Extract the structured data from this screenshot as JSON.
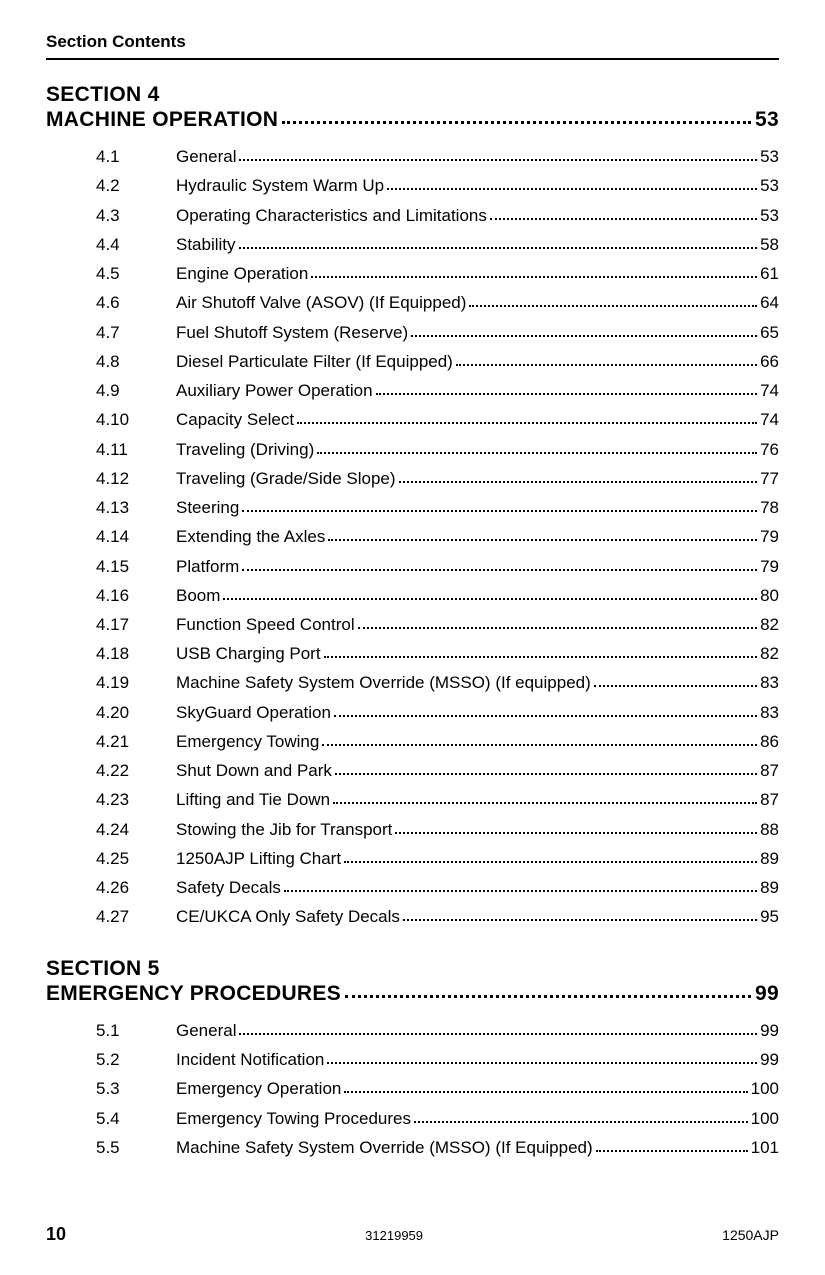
{
  "header": {
    "title": "Section Contents"
  },
  "sections": [
    {
      "label": "SECTION 4",
      "title": "MACHINE OPERATION",
      "page": "53",
      "entries": [
        {
          "num": "4.1",
          "title": "General",
          "page": "53"
        },
        {
          "num": "4.2",
          "title": "Hydraulic System Warm Up",
          "page": "53"
        },
        {
          "num": "4.3",
          "title": "Operating Characteristics and Limitations",
          "page": "53"
        },
        {
          "num": "4.4",
          "title": "Stability",
          "page": "58"
        },
        {
          "num": "4.5",
          "title": "Engine Operation",
          "page": "61"
        },
        {
          "num": "4.6",
          "title": "Air Shutoff Valve (ASOV) (If Equipped)",
          "page": "64"
        },
        {
          "num": "4.7",
          "title": "Fuel Shutoff System (Reserve)",
          "page": "65"
        },
        {
          "num": "4.8",
          "title": "Diesel Particulate Filter (If Equipped)",
          "page": "66"
        },
        {
          "num": "4.9",
          "title": "Auxiliary Power Operation",
          "page": "74"
        },
        {
          "num": "4.10",
          "title": "Capacity Select",
          "page": "74"
        },
        {
          "num": "4.11",
          "title": "Traveling (Driving)",
          "page": "76"
        },
        {
          "num": "4.12",
          "title": "Traveling (Grade/Side Slope)",
          "page": "77"
        },
        {
          "num": "4.13",
          "title": "Steering",
          "page": "78"
        },
        {
          "num": "4.14",
          "title": "Extending the Axles",
          "page": "79"
        },
        {
          "num": "4.15",
          "title": "Platform",
          "page": "79"
        },
        {
          "num": "4.16",
          "title": "Boom",
          "page": "80"
        },
        {
          "num": "4.17",
          "title": "Function Speed Control",
          "page": "82"
        },
        {
          "num": "4.18",
          "title": "USB Charging Port",
          "page": "82"
        },
        {
          "num": "4.19",
          "title": "Machine Safety System Override (MSSO) (If equipped)",
          "page": "83"
        },
        {
          "num": "4.20",
          "title": "SkyGuard Operation",
          "page": "83"
        },
        {
          "num": "4.21",
          "title": "Emergency Towing",
          "page": "86"
        },
        {
          "num": "4.22",
          "title": "Shut Down and Park",
          "page": "87"
        },
        {
          "num": "4.23",
          "title": "Lifting and Tie Down",
          "page": "87"
        },
        {
          "num": "4.24",
          "title": "Stowing the Jib for Transport",
          "page": "88"
        },
        {
          "num": "4.25",
          "title": "1250AJP Lifting Chart",
          "page": "89"
        },
        {
          "num": "4.26",
          "title": "Safety Decals",
          "page": "89"
        },
        {
          "num": "4.27",
          "title": "CE/UKCA Only Safety Decals",
          "page": "95"
        }
      ]
    },
    {
      "label": "SECTION 5",
      "title": "EMERGENCY PROCEDURES",
      "page": "99",
      "entries": [
        {
          "num": "5.1",
          "title": "General",
          "page": "99"
        },
        {
          "num": "5.2",
          "title": "Incident Notification",
          "page": "99"
        },
        {
          "num": "5.3",
          "title": "Emergency Operation",
          "page": "100"
        },
        {
          "num": "5.4",
          "title": "Emergency Towing Procedures",
          "page": "100"
        },
        {
          "num": "5.5",
          "title": "Machine Safety System Override (MSSO) (If Equipped)",
          "page": "101"
        }
      ]
    }
  ],
  "footer": {
    "page_number": "10",
    "doc_id": "31219959",
    "model": "1250AJP"
  }
}
